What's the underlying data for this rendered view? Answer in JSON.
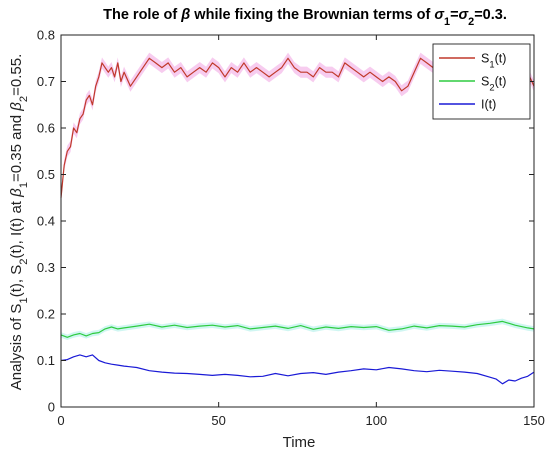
{
  "chart_data": {
    "type": "line",
    "title_parts": [
      {
        "t": "The role of ",
        "style": "normal"
      },
      {
        "t": "β",
        "style": "italic"
      },
      {
        "t": " while fixing the Brownian terms of ",
        "style": "normal"
      },
      {
        "t": "σ",
        "style": "italic"
      },
      {
        "t": "1",
        "style": "sub"
      },
      {
        "t": "=",
        "style": "normal"
      },
      {
        "t": "σ",
        "style": "italic"
      },
      {
        "t": "2",
        "style": "sub"
      },
      {
        "t": "=0.3.",
        "style": "normal"
      }
    ],
    "xlabel": "Time",
    "ylabel_parts": [
      {
        "t": "Analysis of S",
        "style": "normal"
      },
      {
        "t": "1",
        "style": "sub"
      },
      {
        "t": "(t), S",
        "style": "normal"
      },
      {
        "t": "2",
        "style": "sub"
      },
      {
        "t": "(t), I(t) at ",
        "style": "normal"
      },
      {
        "t": "β",
        "style": "italic"
      },
      {
        "t": "1",
        "style": "sub"
      },
      {
        "t": "=0.35 and ",
        "style": "normal"
      },
      {
        "t": "β",
        "style": "italic"
      },
      {
        "t": "2",
        "style": "sub"
      },
      {
        "t": "=0.55.",
        "style": "normal"
      }
    ],
    "xlim": [
      0,
      150
    ],
    "ylim": [
      0,
      0.8
    ],
    "xticks": [
      0,
      50,
      100,
      150
    ],
    "yticks": [
      0,
      0.1,
      0.2,
      0.3,
      0.4,
      0.5,
      0.6,
      0.7,
      0.8
    ],
    "xtick_labels": [
      "0",
      "50",
      "100",
      "150"
    ],
    "ytick_labels": [
      "0",
      "0.1",
      "0.2",
      "0.3",
      "0.4",
      "0.5",
      "0.6",
      "0.7",
      "0.8"
    ],
    "grid": false,
    "legend_position": "top-right",
    "series": [
      {
        "name_parts": [
          {
            "t": "S",
            "style": "normal"
          },
          {
            "t": "1",
            "style": "sub"
          },
          {
            "t": "(t)",
            "style": "normal"
          }
        ],
        "color": "#c0392b",
        "band_color": "#f6c3ec",
        "x": [
          0,
          1,
          2,
          3,
          4,
          5,
          6,
          7,
          8,
          9,
          10,
          11,
          12,
          13,
          14,
          15,
          16,
          17,
          18,
          19,
          20,
          22,
          24,
          26,
          28,
          30,
          32,
          34,
          36,
          38,
          40,
          42,
          44,
          46,
          48,
          50,
          52,
          54,
          56,
          58,
          60,
          62,
          64,
          66,
          68,
          70,
          72,
          74,
          76,
          78,
          80,
          82,
          84,
          86,
          88,
          90,
          92,
          94,
          96,
          98,
          100,
          102,
          104,
          106,
          108,
          110,
          112,
          114,
          116,
          118,
          120,
          122,
          124,
          126,
          128,
          130,
          132,
          134,
          136,
          138,
          140,
          142,
          144,
          146,
          148,
          150
        ],
        "y": [
          0.45,
          0.52,
          0.55,
          0.56,
          0.6,
          0.59,
          0.62,
          0.63,
          0.66,
          0.67,
          0.65,
          0.69,
          0.71,
          0.74,
          0.73,
          0.72,
          0.73,
          0.71,
          0.74,
          0.7,
          0.72,
          0.69,
          0.71,
          0.73,
          0.75,
          0.74,
          0.73,
          0.74,
          0.72,
          0.73,
          0.71,
          0.72,
          0.73,
          0.72,
          0.74,
          0.73,
          0.71,
          0.73,
          0.72,
          0.74,
          0.72,
          0.73,
          0.72,
          0.71,
          0.72,
          0.73,
          0.75,
          0.73,
          0.72,
          0.72,
          0.71,
          0.73,
          0.72,
          0.72,
          0.71,
          0.74,
          0.73,
          0.72,
          0.71,
          0.72,
          0.71,
          0.7,
          0.71,
          0.7,
          0.68,
          0.69,
          0.72,
          0.75,
          0.74,
          0.73,
          0.73,
          0.74,
          0.74,
          0.73,
          0.75,
          0.73,
          0.72,
          0.74,
          0.73,
          0.72,
          0.74,
          0.73,
          0.72,
          0.71,
          0.72,
          0.69
        ]
      },
      {
        "name_parts": [
          {
            "t": "S",
            "style": "normal"
          },
          {
            "t": "2",
            "style": "sub"
          },
          {
            "t": "(t)",
            "style": "normal"
          }
        ],
        "color": "#2ecc40",
        "band_color": "#c8f5f0",
        "x": [
          0,
          2,
          4,
          6,
          8,
          10,
          12,
          14,
          16,
          18,
          20,
          24,
          28,
          32,
          36,
          40,
          44,
          48,
          52,
          56,
          60,
          64,
          68,
          72,
          76,
          80,
          84,
          88,
          92,
          96,
          100,
          104,
          108,
          112,
          116,
          120,
          124,
          128,
          132,
          136,
          140,
          144,
          148,
          150
        ],
        "y": [
          0.155,
          0.15,
          0.155,
          0.158,
          0.153,
          0.158,
          0.16,
          0.168,
          0.172,
          0.168,
          0.17,
          0.174,
          0.178,
          0.172,
          0.176,
          0.171,
          0.174,
          0.176,
          0.172,
          0.175,
          0.168,
          0.171,
          0.174,
          0.169,
          0.175,
          0.167,
          0.172,
          0.169,
          0.173,
          0.171,
          0.173,
          0.165,
          0.168,
          0.174,
          0.17,
          0.175,
          0.174,
          0.172,
          0.177,
          0.18,
          0.184,
          0.176,
          0.17,
          0.168
        ]
      },
      {
        "name_parts": [
          {
            "t": "I(t)",
            "style": "normal"
          }
        ],
        "color": "#1a1ad6",
        "band_color": "",
        "x": [
          0,
          2,
          4,
          6,
          8,
          10,
          12,
          14,
          16,
          18,
          20,
          24,
          28,
          32,
          36,
          40,
          44,
          48,
          52,
          56,
          60,
          64,
          68,
          72,
          76,
          80,
          84,
          88,
          92,
          96,
          100,
          104,
          108,
          112,
          116,
          120,
          124,
          128,
          132,
          136,
          138,
          140,
          142,
          144,
          146,
          148,
          150
        ],
        "y": [
          0.1,
          0.102,
          0.108,
          0.112,
          0.108,
          0.112,
          0.1,
          0.095,
          0.092,
          0.09,
          0.088,
          0.085,
          0.078,
          0.075,
          0.073,
          0.072,
          0.07,
          0.068,
          0.07,
          0.068,
          0.065,
          0.066,
          0.072,
          0.067,
          0.072,
          0.074,
          0.07,
          0.075,
          0.078,
          0.082,
          0.08,
          0.085,
          0.082,
          0.078,
          0.076,
          0.079,
          0.077,
          0.075,
          0.072,
          0.064,
          0.06,
          0.05,
          0.058,
          0.056,
          0.062,
          0.066,
          0.075
        ]
      }
    ]
  }
}
